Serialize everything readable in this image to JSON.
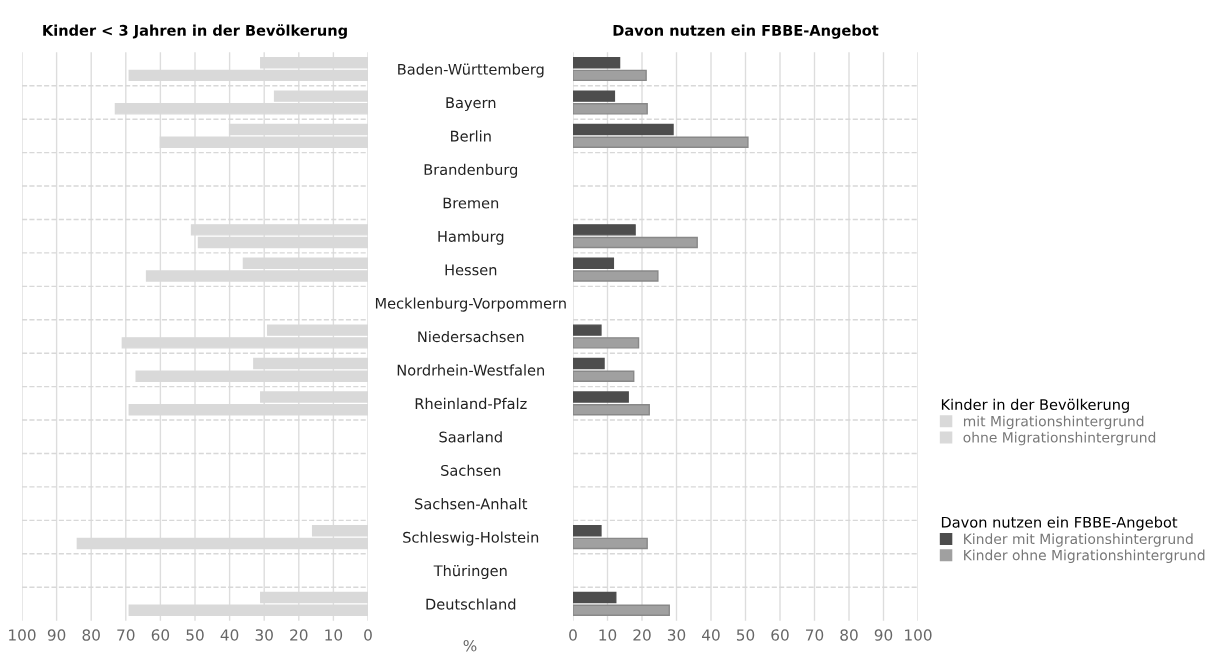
{
  "chart_data": [
    {
      "type": "bar",
      "orientation": "horizontal",
      "title": "Kinder < 3 Jahren in der Bevölkerung",
      "categories": [
        "Baden-Württemberg",
        "Bayern",
        "Berlin",
        "Brandenburg",
        "Bremen",
        "Hamburg",
        "Hessen",
        "Mecklenburg-Vorpommern",
        "Niedersachsen",
        "Nordrhein-Westfalen",
        "Rheinland-Pfalz",
        "Saarland",
        "Sachsen",
        "Sachsen-Anhalt",
        "Schleswig-Holstein",
        "Thüringen",
        "Deutschland"
      ],
      "series": [
        {
          "name": "mit Migrationshintergrund",
          "color": "#d9d9d9",
          "values": [
            31,
            27,
            40,
            null,
            null,
            51,
            36,
            null,
            29,
            33,
            31,
            null,
            null,
            null,
            16,
            null,
            31
          ]
        },
        {
          "name": "ohne Migrationshintergrund",
          "color": "#d9d9d9",
          "values": [
            69,
            73,
            60,
            null,
            null,
            49,
            64,
            null,
            71,
            67,
            69,
            null,
            null,
            null,
            84,
            null,
            69
          ]
        }
      ],
      "xlim": [
        100,
        0
      ],
      "xticks": [
        100,
        90,
        80,
        70,
        60,
        50,
        40,
        30,
        20,
        10,
        0
      ],
      "grid": true,
      "legend": "right",
      "legend_title": "Kinder in der Bevölkerung",
      "annotations": [
        "%"
      ]
    },
    {
      "type": "bar",
      "orientation": "horizontal",
      "title": "Davon nutzen ein FBBE-Angebot",
      "series": [
        {
          "name": "Kinder mit Migrationshintergrund",
          "color": "#4d4d4d",
          "values": [
            13.5,
            12,
            29,
            null,
            null,
            18,
            11.7,
            null,
            8.1,
            9,
            16,
            null,
            null,
            null,
            8.1,
            null,
            12.4
          ]
        },
        {
          "name": "Kinder ohne Migrationshintergrund",
          "color": "#a0a0a0",
          "values": [
            21.2,
            21.5,
            50.7,
            null,
            null,
            36,
            24.6,
            null,
            19,
            17.6,
            22.1,
            null,
            null,
            null,
            21.5,
            null,
            27.9
          ]
        }
      ],
      "xlim": [
        0,
        100
      ],
      "xticks": [
        0,
        10,
        20,
        30,
        40,
        50,
        60,
        70,
        80,
        90,
        100
      ],
      "grid": true,
      "legend": "right",
      "legend_title": "Davon nutzen ein FBBE-Angebot",
      "tick_labels": "x"
    }
  ]
}
